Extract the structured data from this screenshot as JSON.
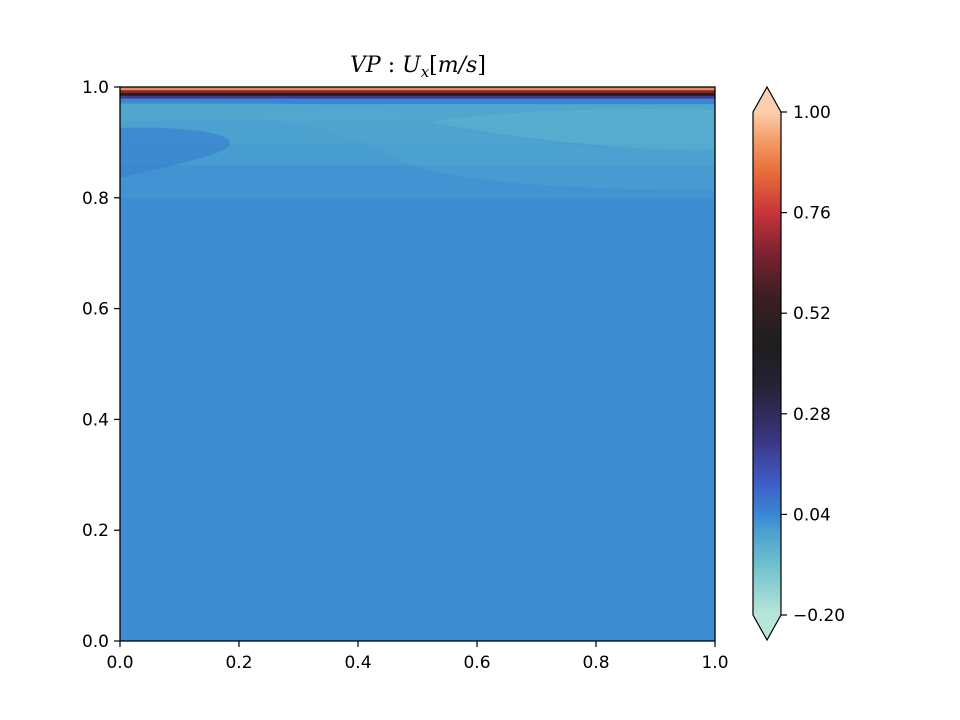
{
  "chart_data": {
    "type": "heatmap",
    "title": {
      "prefix": "VP",
      "sep": " : ",
      "var": "U",
      "sub": "x",
      "unit_open": "[",
      "unit": "m/s",
      "unit_close": "]"
    },
    "xlabel": "",
    "ylabel": "",
    "xlim": [
      0.0,
      1.0
    ],
    "ylim": [
      0.0,
      1.0
    ],
    "x_ticks": [
      "0.0",
      "0.2",
      "0.4",
      "0.6",
      "0.8",
      "1.0"
    ],
    "y_ticks": [
      "0.0",
      "0.2",
      "0.4",
      "0.6",
      "0.8",
      "1.0"
    ],
    "field": {
      "description_values": "x-velocity field: near 0.03 in bulk, rising sharply to 1.0 at the top lid (y=1.0)",
      "bulk_value": 0.03,
      "lid_value": 1.0,
      "profile_y": [
        0.0,
        0.8,
        0.86,
        0.9,
        0.94,
        0.97,
        0.98,
        0.985,
        0.99,
        0.995,
        1.0
      ],
      "profile_u": [
        0.03,
        0.03,
        0.01,
        0.0,
        -0.01,
        -0.02,
        0.1,
        0.3,
        0.55,
        0.8,
        1.0
      ]
    },
    "colorbar": {
      "min": -0.2,
      "max": 1.0,
      "ticks": [
        "−0.20",
        "0.04",
        "0.28",
        "0.52",
        "0.76",
        "1.00"
      ],
      "tick_values": [
        -0.2,
        0.04,
        0.28,
        0.52,
        0.76,
        1.0
      ],
      "extend": "both",
      "colormap_stops": [
        {
          "v": -0.2,
          "color": "#b7e6d9"
        },
        {
          "v": -0.08,
          "color": "#6fc0cc"
        },
        {
          "v": 0.0,
          "color": "#4aa0cf"
        },
        {
          "v": 0.04,
          "color": "#3a86d4"
        },
        {
          "v": 0.12,
          "color": "#3f5bc4"
        },
        {
          "v": 0.22,
          "color": "#3a3580"
        },
        {
          "v": 0.34,
          "color": "#262338"
        },
        {
          "v": 0.44,
          "color": "#1e1d1f"
        },
        {
          "v": 0.56,
          "color": "#3c1e22"
        },
        {
          "v": 0.66,
          "color": "#7a2230"
        },
        {
          "v": 0.76,
          "color": "#c9343b"
        },
        {
          "v": 0.86,
          "color": "#e8703a"
        },
        {
          "v": 0.94,
          "color": "#f5a16d"
        },
        {
          "v": 1.0,
          "color": "#fbcfae"
        }
      ],
      "extend_low_color": "#b7e6d9",
      "extend_high_color": "#fbcfae"
    }
  }
}
